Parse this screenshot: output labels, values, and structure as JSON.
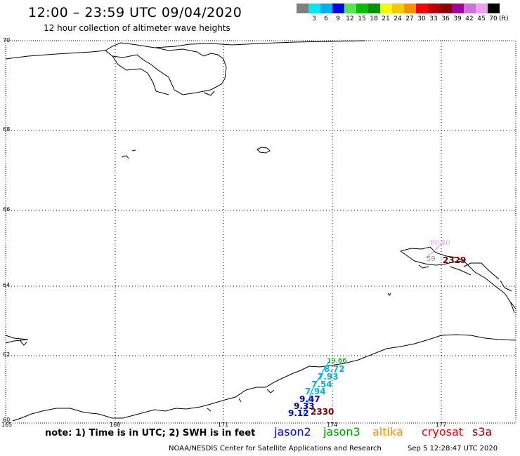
{
  "header": {
    "title": "12:00 – 23:59 UTC 09/04/2020",
    "subtitle": "12 hour collection of altimeter wave heights"
  },
  "legend": {
    "unit": "(ft)",
    "items": [
      {
        "label": "",
        "color": "#808080"
      },
      {
        "label": "3",
        "color": "#00e8f0"
      },
      {
        "label": "6",
        "color": "#00b0f0"
      },
      {
        "label": "9",
        "color": "#0000f0"
      },
      {
        "label": "12",
        "color": "#50e850"
      },
      {
        "label": "15",
        "color": "#00c000"
      },
      {
        "label": "18",
        "color": "#009000"
      },
      {
        "label": "21",
        "color": "#f8f800"
      },
      {
        "label": "24",
        "color": "#f8c800"
      },
      {
        "label": "27",
        "color": "#f89000"
      },
      {
        "label": "30",
        "color": "#f80000"
      },
      {
        "label": "33",
        "color": "#c00000"
      },
      {
        "label": "36",
        "color": "#900000"
      },
      {
        "label": "39",
        "color": "#a000a0"
      },
      {
        "label": "42",
        "color": "#d070d8"
      },
      {
        "label": "45",
        "color": "#f0a0f0"
      },
      {
        "label": "70",
        "color": "#000000"
      }
    ]
  },
  "map": {
    "lat_labels": [
      "70",
      "68",
      "66",
      "64",
      "62",
      "60"
    ],
    "lon_labels": [
      "165",
      "168",
      "171",
      "174",
      "177"
    ],
    "wave_heights": [
      {
        "value": "19.66",
        "color": "#009000"
      },
      {
        "value": "8.72",
        "color": "#00b0f0"
      },
      {
        "value": "7.93",
        "color": "#00b0f0"
      },
      {
        "value": "7.54",
        "color": "#00b0f0"
      },
      {
        "value": "7.94",
        "color": "#00b0f0"
      },
      {
        "value": "9.47",
        "color": "#0000c0"
      },
      {
        "value": "9.33",
        "color": "#0000c0"
      },
      {
        "value": "9.12",
        "color": "#0000c0"
      },
      {
        "value": "2330",
        "color": "#800000"
      },
      {
        "value": "80.80",
        "color": "#f0a0f0"
      },
      {
        "value": "59",
        "color": "#909090"
      },
      {
        "value": "2329",
        "color": "#800000"
      }
    ]
  },
  "note": "note: 1) Time is in UTC; 2) SWH is in feet",
  "satellites": [
    {
      "name": "jason2",
      "color": "#0000f0"
    },
    {
      "name": "jason3",
      "color": "#00a000"
    },
    {
      "name": "altika",
      "color": "#f89000"
    },
    {
      "name": "cryosat",
      "color": "#f00000"
    },
    {
      "name": "s3a",
      "color": "#900000"
    }
  ],
  "footer": {
    "credit": "NOAA/NESDIS Center for Satellite Applications and Research",
    "timestamp": "Sep  5 12:28:47 UTC 2020"
  }
}
